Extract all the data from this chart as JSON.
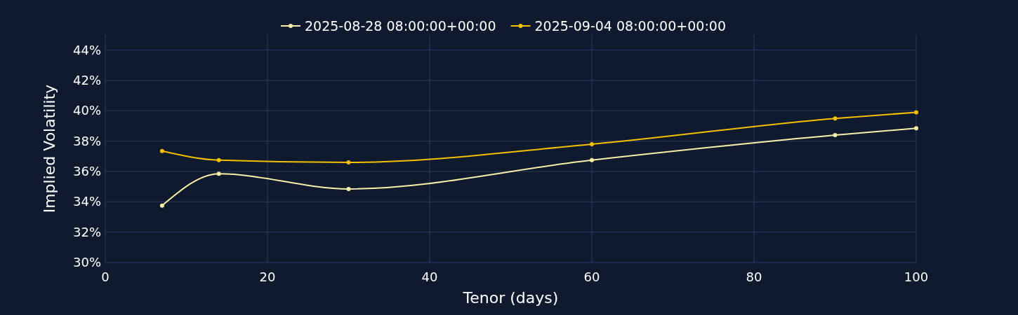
{
  "chart_data": {
    "type": "line",
    "xlabel": "Tenor (days)",
    "ylabel": "Implied Volatility",
    "x": [
      7,
      14,
      30,
      60,
      90,
      100
    ],
    "series": [
      {
        "name": "2025-08-28 08:00:00+00:00",
        "color": "#f7f0a8",
        "values": [
          33.75,
          35.85,
          34.85,
          36.75,
          38.4,
          38.85
        ]
      },
      {
        "name": "2025-09-04 08:00:00+00:00",
        "color": "#f5c000",
        "values": [
          37.35,
          36.75,
          36.6,
          37.8,
          39.5,
          39.9
        ]
      }
    ],
    "xlim": [
      0,
      100
    ],
    "xticks": [
      0,
      20,
      40,
      60,
      80,
      100
    ],
    "ylim": [
      30,
      45
    ],
    "yticks": [
      {
        "value": 30,
        "label": "30%"
      },
      {
        "value": 32,
        "label": "32%"
      },
      {
        "value": 34,
        "label": "34%"
      },
      {
        "value": 36,
        "label": "36%"
      },
      {
        "value": 38,
        "label": "38%"
      },
      {
        "value": 40,
        "label": "40%"
      },
      {
        "value": 42,
        "label": "42%"
      },
      {
        "value": 44,
        "label": "44%"
      }
    ],
    "grid": true,
    "legend": "top",
    "marker": "circle",
    "line_style": "solid"
  }
}
